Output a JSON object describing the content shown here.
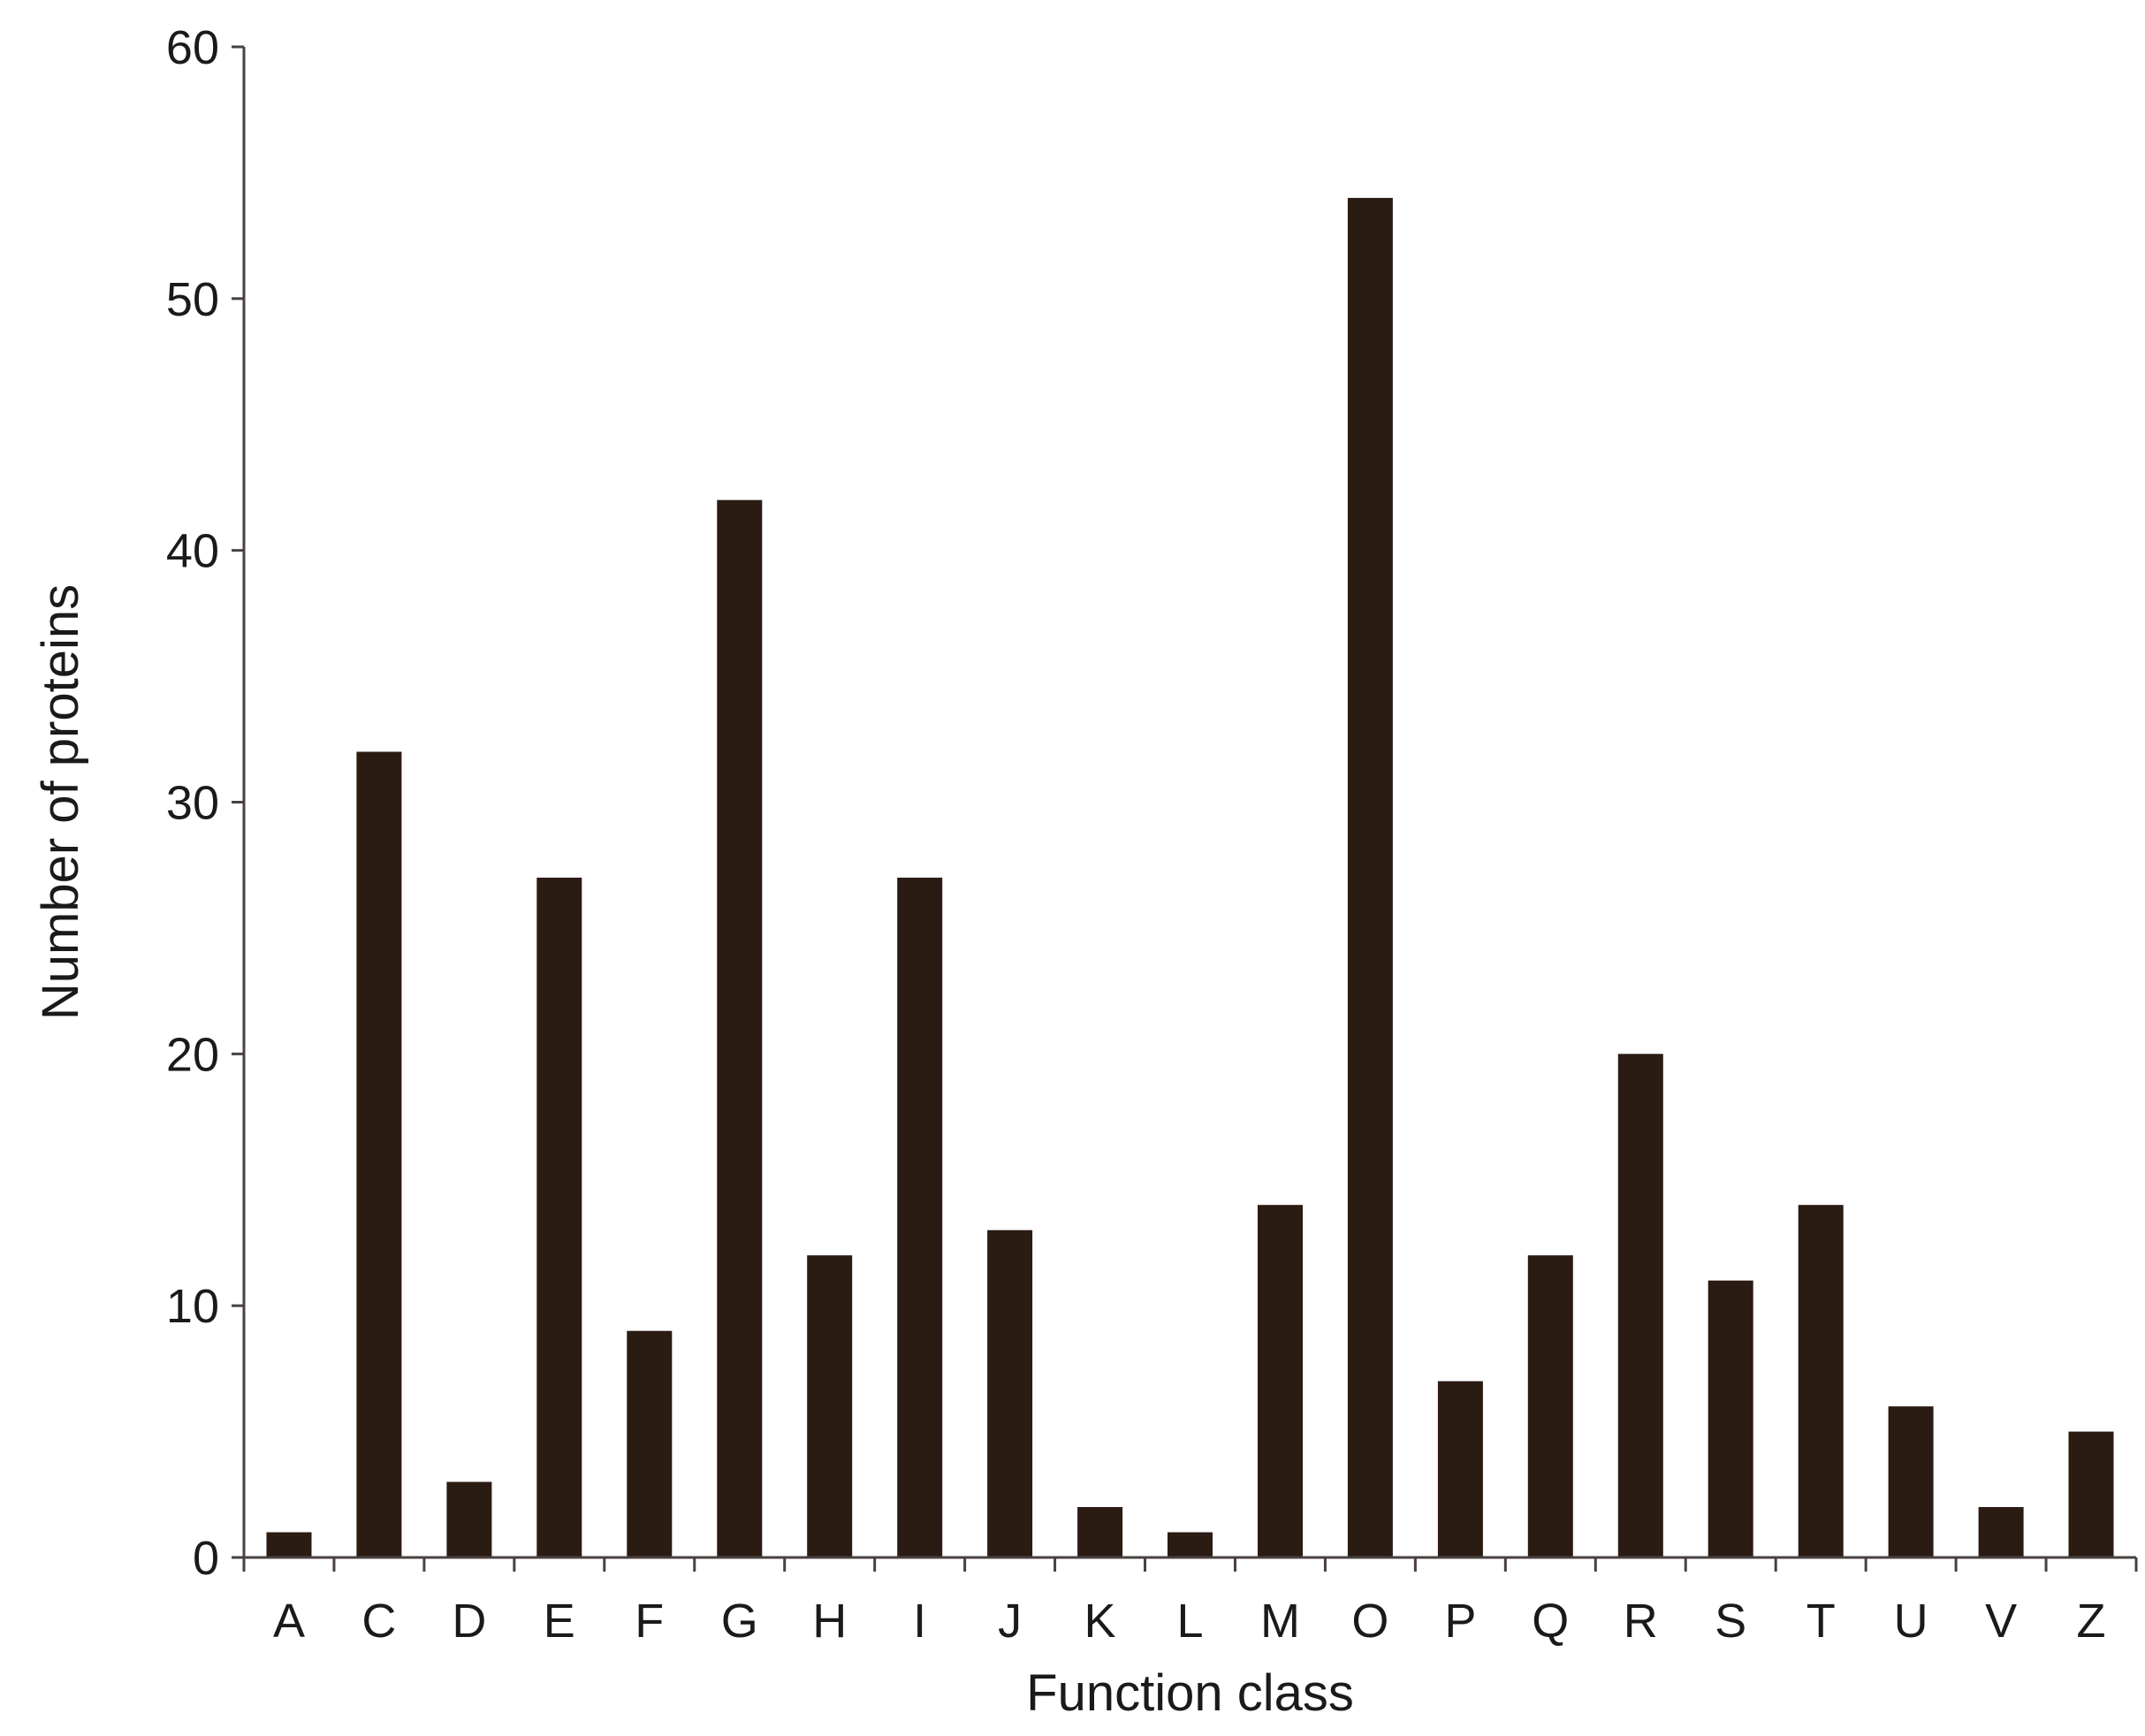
{
  "chart_data": {
    "type": "bar",
    "title": "",
    "xlabel": "Function class",
    "ylabel": "Number of proteins",
    "categories": [
      "A",
      "C",
      "D",
      "E",
      "F",
      "G",
      "H",
      "I",
      "J",
      "K",
      "L",
      "M",
      "O",
      "P",
      "Q",
      "R",
      "S",
      "T",
      "U",
      "V",
      "Z"
    ],
    "values": [
      1,
      32,
      3,
      27,
      9,
      42,
      12,
      27,
      13,
      2,
      1,
      14,
      54,
      7,
      12,
      20,
      11,
      14,
      6,
      2,
      5
    ],
    "ylim": [
      0,
      60
    ],
    "yticks": [
      0,
      10,
      20,
      30,
      40,
      50,
      60
    ],
    "grid": false,
    "colors": {
      "bar": "#2a1b13",
      "axis": "#4a4040",
      "text": "#1a1a1a"
    }
  }
}
